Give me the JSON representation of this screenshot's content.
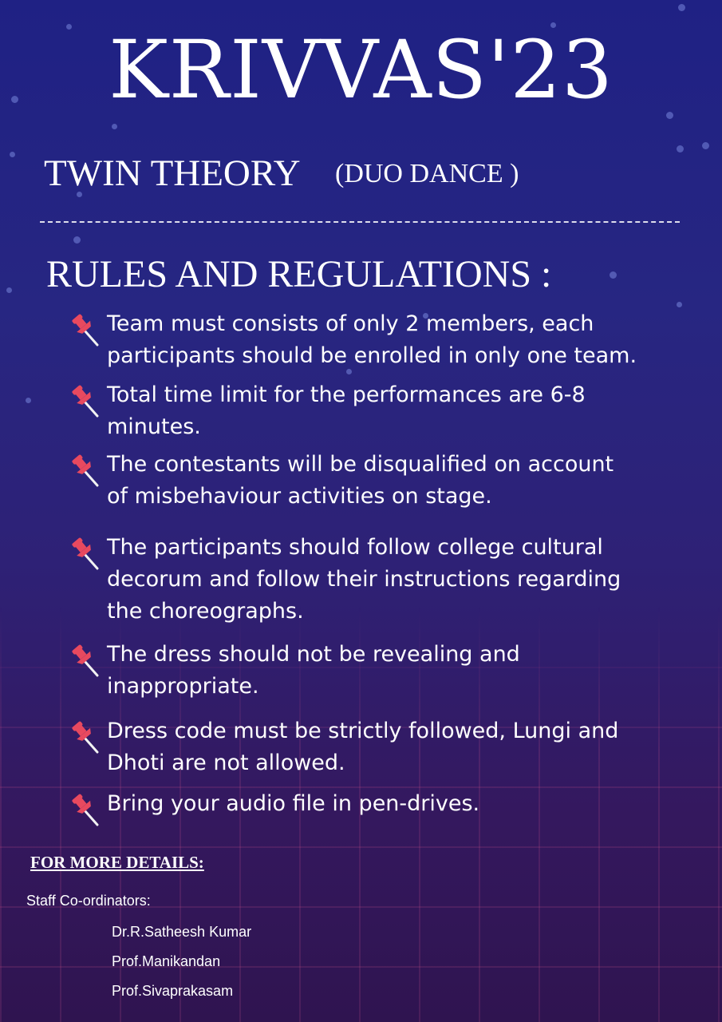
{
  "title": "KRIVVAS'23",
  "event": {
    "name": "TWIN THEORY",
    "type": "(DUO DANCE )"
  },
  "rules": {
    "heading": "RULES AND REGULATIONS :",
    "items": [
      {
        "lines": [
          "Team must consists of only 2 members, each",
          "participants should be enrolled in only one team."
        ]
      },
      {
        "lines": [
          "Total time limit for the performances are 6-8",
          "minutes."
        ]
      },
      {
        "lines": [
          "The contestants will be disqualified on account",
          "of misbehaviour activities on stage."
        ]
      },
      {
        "lines": [
          "The participants should follow college cultural",
          "decorum and follow their instructions regarding",
          "the choreographs."
        ]
      },
      {
        "lines": [
          "The dress should not be revealing and",
          "inappropriate."
        ]
      },
      {
        "lines": [
          "Dress code must be strictly followed, Lungi and",
          "Dhoti are not allowed."
        ]
      },
      {
        "lines": [
          "Bring your audio file in pen-drives."
        ]
      }
    ],
    "bullet_icon": "pushpin-icon"
  },
  "contact": {
    "heading": "FOR MORE DETAILS:",
    "staff_label": "Staff Co-ordinators:",
    "staff": [
      "Dr.R.Satheesh Kumar",
      "Prof.Manikandan",
      "Prof.Sivaprakasam"
    ]
  },
  "colors": {
    "pin": "#e8495f",
    "pin_needle": "#f2f2f2",
    "background_top": "#1f2184",
    "background_bottom": "#2f1450"
  }
}
